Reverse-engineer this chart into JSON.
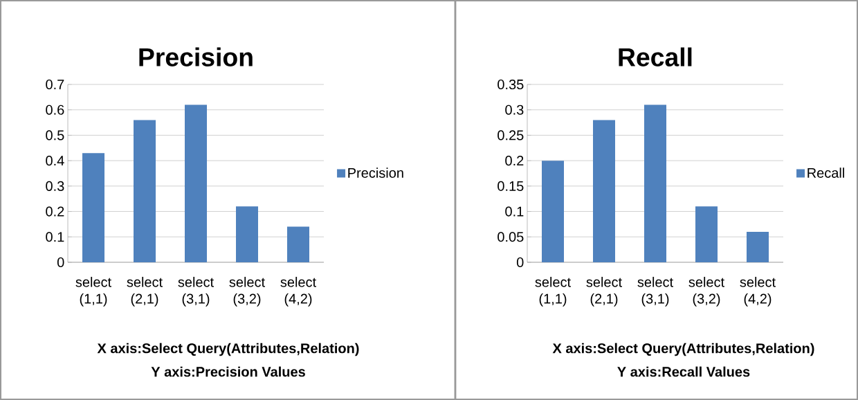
{
  "chart_data": [
    {
      "type": "bar",
      "title": "Precision",
      "categories": [
        "select (1,1)",
        "select (2,1)",
        "select (3,1)",
        "select (3,2)",
        "select (4,2)"
      ],
      "series": [
        {
          "name": "Precision",
          "color": "#4f81bd",
          "values": [
            0.43,
            0.56,
            0.62,
            0.22,
            0.14
          ]
        }
      ],
      "ylim": [
        0,
        0.7
      ],
      "yticks": [
        0,
        0.1,
        0.2,
        0.3,
        0.4,
        0.5,
        0.6,
        0.7
      ],
      "grid": "y",
      "legend": "right",
      "annotations": [
        "X axis:Select Query(Attributes,Relation)",
        "Y axis:Precision Values"
      ]
    },
    {
      "type": "bar",
      "title": "Recall",
      "categories": [
        "select (1,1)",
        "select (2,1)",
        "select (3,1)",
        "select (3,2)",
        "select (4,2)"
      ],
      "series": [
        {
          "name": "Recall",
          "color": "#4f81bd",
          "values": [
            0.2,
            0.28,
            0.31,
            0.11,
            0.06
          ]
        }
      ],
      "ylim": [
        0,
        0.35
      ],
      "yticks": [
        0,
        0.05,
        0.1,
        0.15,
        0.2,
        0.25,
        0.3,
        0.35
      ],
      "grid": "y",
      "legend": "right",
      "annotations": [
        "X axis:Select Query(Attributes,Relation)",
        "Y axis:Recall Values"
      ]
    }
  ]
}
